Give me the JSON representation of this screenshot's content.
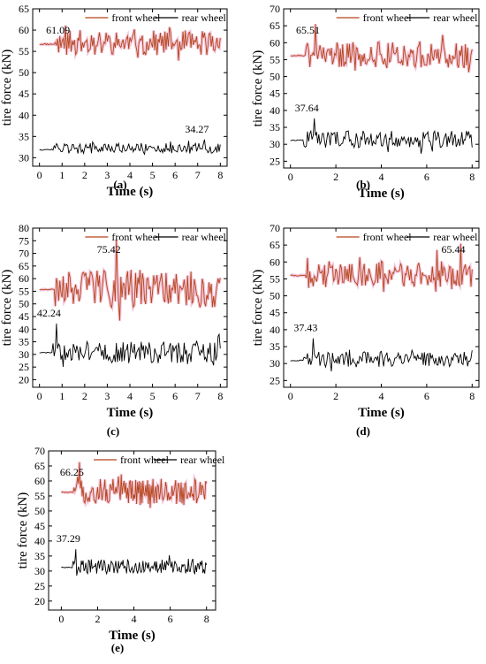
{
  "figure": {
    "panels": [
      "(a)",
      "(b)",
      "(c)",
      "(d)",
      "(e)"
    ]
  },
  "colors": {
    "front": "#b5451b",
    "rear": "#000000",
    "jitter": "#e0609a",
    "axis": "#000000"
  },
  "chart_data": [
    {
      "panel": "(a)",
      "type": "line",
      "xlabel": "Time (s)",
      "ylabel": "tire force (kN)",
      "xlim": [
        -0.3,
        8.3
      ],
      "ylim": [
        28,
        65
      ],
      "xticks": [
        0,
        1,
        2,
        3,
        4,
        5,
        6,
        7,
        8
      ],
      "yticks": [
        30,
        35,
        40,
        45,
        50,
        55,
        60,
        65
      ],
      "legend": [
        "front wheel",
        "rear wheel"
      ],
      "legend_position": "top",
      "annotations": [
        {
          "text": "61.09",
          "series": "front",
          "x": 1.15,
          "y": 61.09
        },
        {
          "text": "34.27",
          "series": "rear",
          "x": 7.3,
          "y": 34.27
        }
      ],
      "series": [
        {
          "name": "front wheel",
          "start": 0.0,
          "end": 8.0,
          "mean": 57.0,
          "amp": 3.0,
          "ramp_end": 0.7,
          "seed": 11
        },
        {
          "name": "rear wheel",
          "start": 0.0,
          "end": 8.0,
          "mean": 32.2,
          "amp": 1.2,
          "ramp_end": 0.6,
          "seed": 12
        }
      ]
    },
    {
      "panel": "(b)",
      "type": "line",
      "xlabel": "Time (s)",
      "ylabel": "tire force (kN)",
      "xlim": [
        -0.3,
        8.3
      ],
      "ylim": [
        23,
        70
      ],
      "xticks": [
        0,
        2,
        4,
        6,
        8
      ],
      "yticks": [
        25,
        30,
        35,
        40,
        45,
        50,
        55,
        60,
        65,
        70
      ],
      "legend": [
        "front wheel",
        "rear wheel"
      ],
      "legend_position": "top",
      "annotations": [
        {
          "text": "65.51",
          "series": "front",
          "x": 1.1,
          "y": 65.51
        },
        {
          "text": "37.64",
          "series": "rear",
          "x": 1.05,
          "y": 37.64
        }
      ],
      "series": [
        {
          "name": "front wheel",
          "start": 0.0,
          "end": 8.0,
          "mean": 56.5,
          "amp": 4.0,
          "ramp_end": 0.7,
          "seed": 21
        },
        {
          "name": "rear wheel",
          "start": 0.0,
          "end": 8.0,
          "mean": 31.5,
          "amp": 2.5,
          "ramp_end": 0.6,
          "seed": 22
        }
      ]
    },
    {
      "panel": "(c)",
      "type": "line",
      "xlabel": "Time (s)",
      "ylabel": "tire force (kN)",
      "xlim": [
        -0.3,
        8.3
      ],
      "ylim": [
        17,
        80
      ],
      "xticks": [
        0,
        1,
        2,
        3,
        4,
        5,
        6,
        7,
        8
      ],
      "yticks": [
        20,
        25,
        30,
        35,
        40,
        45,
        50,
        55,
        60,
        65,
        70,
        75,
        80
      ],
      "legend": [
        "front wheel",
        "rear wheel"
      ],
      "legend_position": "top",
      "annotations": [
        {
          "text": "75.42",
          "series": "front",
          "x": 3.4,
          "y": 75.42
        },
        {
          "text": "42.24",
          "series": "rear",
          "x": 0.75,
          "y": 42.24
        }
      ],
      "series": [
        {
          "name": "front wheel",
          "start": 0.0,
          "end": 8.0,
          "mean": 56.0,
          "amp": 7.5,
          "ramp_end": 0.7,
          "seed": 31
        },
        {
          "name": "rear wheel",
          "start": 0.0,
          "end": 8.0,
          "mean": 31.0,
          "amp": 4.5,
          "ramp_end": 0.6,
          "seed": 32
        }
      ]
    },
    {
      "panel": "(d)",
      "type": "line",
      "xlabel": "Time (s)",
      "ylabel": "tire force (kN)",
      "xlim": [
        -0.3,
        8.3
      ],
      "ylim": [
        23,
        70
      ],
      "xticks": [
        0,
        2,
        4,
        6,
        8
      ],
      "yticks": [
        25,
        30,
        35,
        40,
        45,
        50,
        55,
        60,
        65,
        70
      ],
      "legend": [
        "front wheel",
        "rear wheel"
      ],
      "legend_position": "top",
      "annotations": [
        {
          "text": "65.44",
          "series": "front",
          "x": 7.5,
          "y": 65.44
        },
        {
          "text": "37.43",
          "series": "rear",
          "x": 1.0,
          "y": 37.43
        }
      ],
      "series": [
        {
          "name": "front wheel",
          "start": 0.0,
          "end": 8.0,
          "mean": 56.3,
          "amp": 4.0,
          "ramp_end": 0.7,
          "seed": 41
        },
        {
          "name": "rear wheel",
          "start": 0.0,
          "end": 8.0,
          "mean": 31.2,
          "amp": 2.3,
          "ramp_end": 0.6,
          "seed": 42
        }
      ]
    },
    {
      "panel": "(e)",
      "type": "line",
      "xlabel": "Time (s)",
      "ylabel": "tire force (kN)",
      "xlim": [
        -0.7,
        8.5
      ],
      "ylim": [
        17,
        70
      ],
      "xticks": [
        0,
        2,
        4,
        6,
        8
      ],
      "yticks": [
        20,
        25,
        30,
        35,
        40,
        45,
        50,
        55,
        60,
        65,
        70
      ],
      "legend": [
        "front wheel",
        "rear wheel"
      ],
      "legend_position": "top",
      "annotations": [
        {
          "text": "66.25",
          "series": "front",
          "x": 1.0,
          "y": 66.25
        },
        {
          "text": "37.29",
          "series": "rear",
          "x": 0.8,
          "y": 37.29
        }
      ],
      "series": [
        {
          "name": "front wheel",
          "start": 0.0,
          "end": 8.0,
          "mean": 56.5,
          "amp": 4.2,
          "ramp_end": 0.7,
          "seed": 51
        },
        {
          "name": "rear wheel",
          "start": 0.0,
          "end": 8.0,
          "mean": 31.5,
          "amp": 2.4,
          "ramp_end": 0.6,
          "seed": 52
        }
      ]
    }
  ]
}
